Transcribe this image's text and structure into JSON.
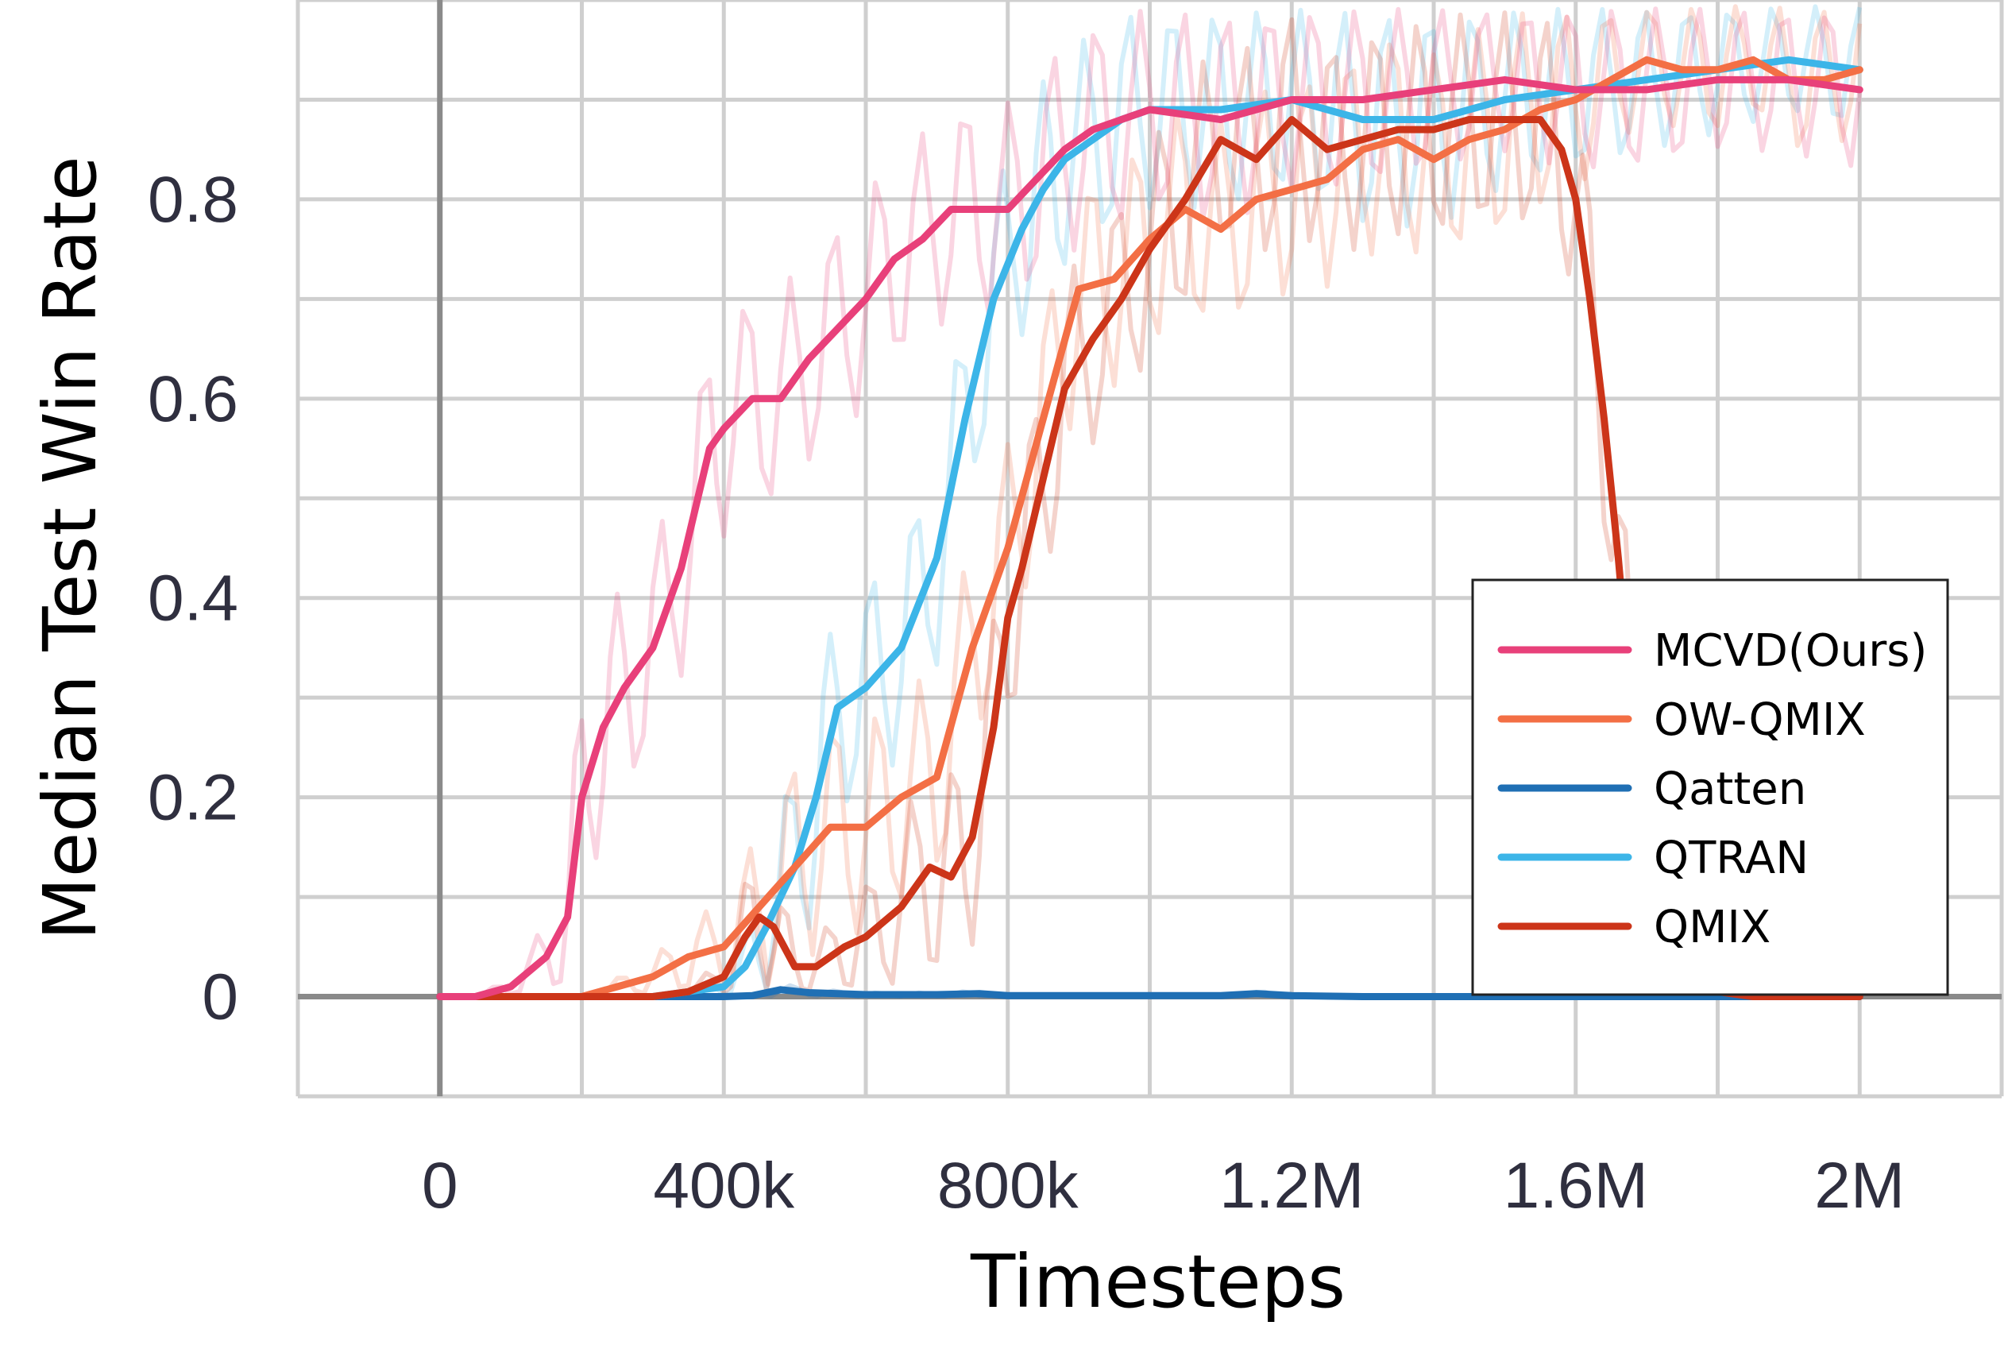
{
  "chart_data": {
    "type": "line",
    "title": "",
    "xlabel": "Timesteps",
    "ylabel": "Median Test Win Rate",
    "xlim": [
      -200000,
      2200000
    ],
    "ylim": [
      -0.1,
      1.0
    ],
    "x_ticks": [
      {
        "value": 0,
        "label": "0"
      },
      {
        "value": 400000,
        "label": "400k"
      },
      {
        "value": 800000,
        "label": "800k"
      },
      {
        "value": 1200000,
        "label": "1.2M"
      },
      {
        "value": 1600000,
        "label": "1.6M"
      },
      {
        "value": 2000000,
        "label": "2M"
      }
    ],
    "y_ticks": [
      {
        "value": 0,
        "label": "0"
      },
      {
        "value": 0.2,
        "label": "0.2"
      },
      {
        "value": 0.4,
        "label": "0.4"
      },
      {
        "value": 0.6,
        "label": "0.6"
      },
      {
        "value": 0.8,
        "label": "0.8"
      }
    ],
    "minor_x_grid": [
      -200000,
      200000,
      600000,
      1000000,
      1400000,
      1800000,
      2200000
    ],
    "minor_y_grid": [
      -0.1,
      0.1,
      0.3,
      0.5,
      0.7,
      0.9,
      1.0
    ],
    "grid": true,
    "legend_position": "lower-right",
    "series": [
      {
        "name": "MCVD(Ours)",
        "color": "#e8407a",
        "x": [
          0,
          50000,
          100000,
          150000,
          180000,
          200000,
          230000,
          260000,
          300000,
          340000,
          380000,
          400000,
          440000,
          480000,
          520000,
          560000,
          600000,
          640000,
          680000,
          720000,
          760000,
          800000,
          840000,
          880000,
          920000,
          960000,
          1000000,
          1100000,
          1200000,
          1300000,
          1400000,
          1500000,
          1600000,
          1700000,
          1800000,
          1900000,
          2000000
        ],
        "y": [
          0,
          0,
          0.01,
          0.04,
          0.08,
          0.2,
          0.27,
          0.31,
          0.35,
          0.43,
          0.55,
          0.57,
          0.6,
          0.6,
          0.64,
          0.67,
          0.7,
          0.74,
          0.76,
          0.79,
          0.79,
          0.79,
          0.82,
          0.85,
          0.87,
          0.88,
          0.89,
          0.88,
          0.9,
          0.9,
          0.91,
          0.92,
          0.91,
          0.91,
          0.92,
          0.92,
          0.91
        ]
      },
      {
        "name": "OW-QMIX",
        "color": "#f36f45",
        "x": [
          0,
          200000,
          250000,
          300000,
          350000,
          400000,
          450000,
          500000,
          550000,
          600000,
          650000,
          700000,
          750000,
          800000,
          850000,
          900000,
          950000,
          1000000,
          1050000,
          1100000,
          1150000,
          1200000,
          1250000,
          1300000,
          1350000,
          1400000,
          1450000,
          1500000,
          1550000,
          1600000,
          1650000,
          1700000,
          1750000,
          1800000,
          1850000,
          1900000,
          1950000,
          2000000
        ],
        "y": [
          0,
          0,
          0.01,
          0.02,
          0.04,
          0.05,
          0.09,
          0.13,
          0.17,
          0.17,
          0.2,
          0.22,
          0.35,
          0.45,
          0.58,
          0.71,
          0.72,
          0.76,
          0.79,
          0.77,
          0.8,
          0.81,
          0.82,
          0.85,
          0.86,
          0.84,
          0.86,
          0.87,
          0.89,
          0.9,
          0.92,
          0.94,
          0.93,
          0.93,
          0.94,
          0.92,
          0.92,
          0.93
        ]
      },
      {
        "name": "Qatten",
        "color": "#1f6fb4",
        "x": [
          0,
          400000,
          440000,
          480000,
          520000,
          600000,
          700000,
          760000,
          800000,
          900000,
          1000000,
          1100000,
          1150000,
          1200000,
          1300000,
          1400000,
          1500000,
          1600000,
          1700000,
          1800000,
          1900000,
          2000000
        ],
        "y": [
          0,
          0,
          0.001,
          0.007,
          0.004,
          0.002,
          0.002,
          0.003,
          0.001,
          0.001,
          0.001,
          0.001,
          0.003,
          0.001,
          0,
          0,
          0,
          0,
          0,
          0,
          0,
          0
        ]
      },
      {
        "name": "QTRAN",
        "color": "#3cb5e8",
        "x": [
          0,
          300000,
          350000,
          400000,
          430000,
          460000,
          500000,
          530000,
          560000,
          600000,
          650000,
          700000,
          740000,
          780000,
          820000,
          850000,
          880000,
          920000,
          960000,
          1000000,
          1100000,
          1200000,
          1300000,
          1400000,
          1500000,
          1600000,
          1700000,
          1800000,
          1900000,
          2000000
        ],
        "y": [
          0,
          0,
          0.005,
          0.01,
          0.03,
          0.07,
          0.13,
          0.2,
          0.29,
          0.31,
          0.35,
          0.44,
          0.58,
          0.7,
          0.77,
          0.81,
          0.84,
          0.86,
          0.88,
          0.89,
          0.89,
          0.9,
          0.88,
          0.88,
          0.9,
          0.91,
          0.92,
          0.93,
          0.94,
          0.93
        ]
      },
      {
        "name": "QMIX",
        "color": "#cc3519",
        "x": [
          0,
          300000,
          350000,
          400000,
          430000,
          450000,
          470000,
          500000,
          530000,
          570000,
          600000,
          650000,
          690000,
          720000,
          750000,
          780000,
          800000,
          820000,
          850000,
          880000,
          920000,
          960000,
          1000000,
          1050000,
          1100000,
          1150000,
          1200000,
          1250000,
          1300000,
          1350000,
          1400000,
          1450000,
          1500000,
          1550000,
          1580000,
          1600000,
          1620000,
          1640000,
          1660000,
          1680000,
          1700000,
          1720000,
          1750000,
          1800000,
          1850000,
          1900000,
          1950000,
          2000000
        ],
        "y": [
          0,
          0,
          0.005,
          0.02,
          0.06,
          0.08,
          0.07,
          0.03,
          0.03,
          0.05,
          0.06,
          0.09,
          0.13,
          0.12,
          0.16,
          0.27,
          0.38,
          0.43,
          0.52,
          0.61,
          0.66,
          0.7,
          0.75,
          0.8,
          0.86,
          0.84,
          0.88,
          0.85,
          0.86,
          0.87,
          0.87,
          0.88,
          0.88,
          0.88,
          0.85,
          0.8,
          0.7,
          0.58,
          0.44,
          0.28,
          0.15,
          0.06,
          0.02,
          0.005,
          0,
          0,
          0,
          0
        ]
      }
    ]
  }
}
